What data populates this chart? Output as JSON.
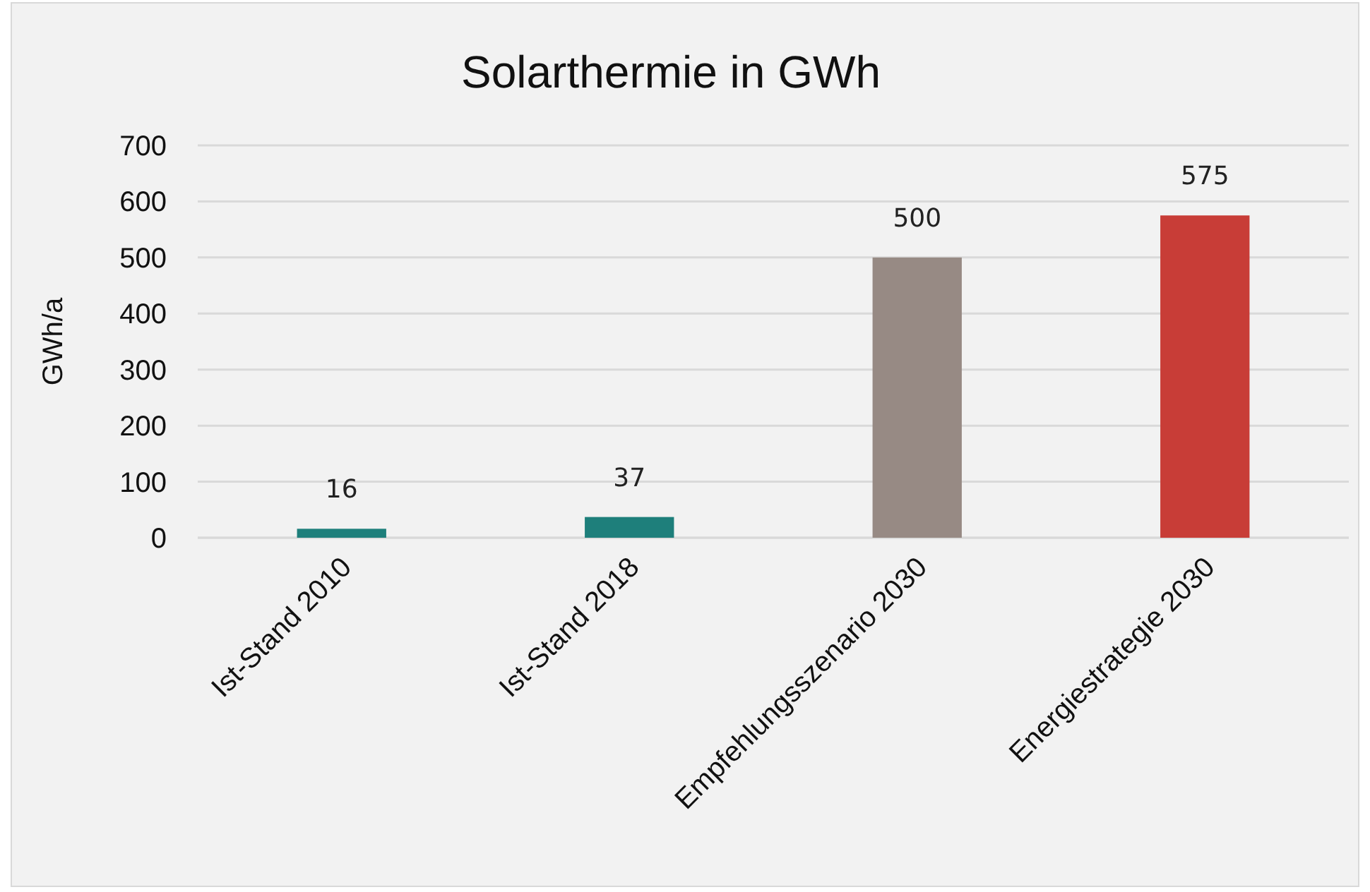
{
  "chart_data": {
    "type": "bar",
    "title": "Solarthermie in GWh",
    "ylabel": "GWh/a",
    "categories": [
      "Ist-Stand 2010",
      "Ist-Stand 2018",
      "Empfehlungsszenario 2030",
      "Energiestrategie 2030"
    ],
    "values": [
      16,
      37,
      500,
      575
    ],
    "colors": [
      "#1e7f7b",
      "#1e7f7b",
      "#978a84",
      "#c83d37"
    ],
    "ylim": [
      0,
      700
    ],
    "yticks": [
      0,
      100,
      200,
      300,
      400,
      500,
      600,
      700
    ],
    "grid": "y",
    "data_labels": true
  }
}
